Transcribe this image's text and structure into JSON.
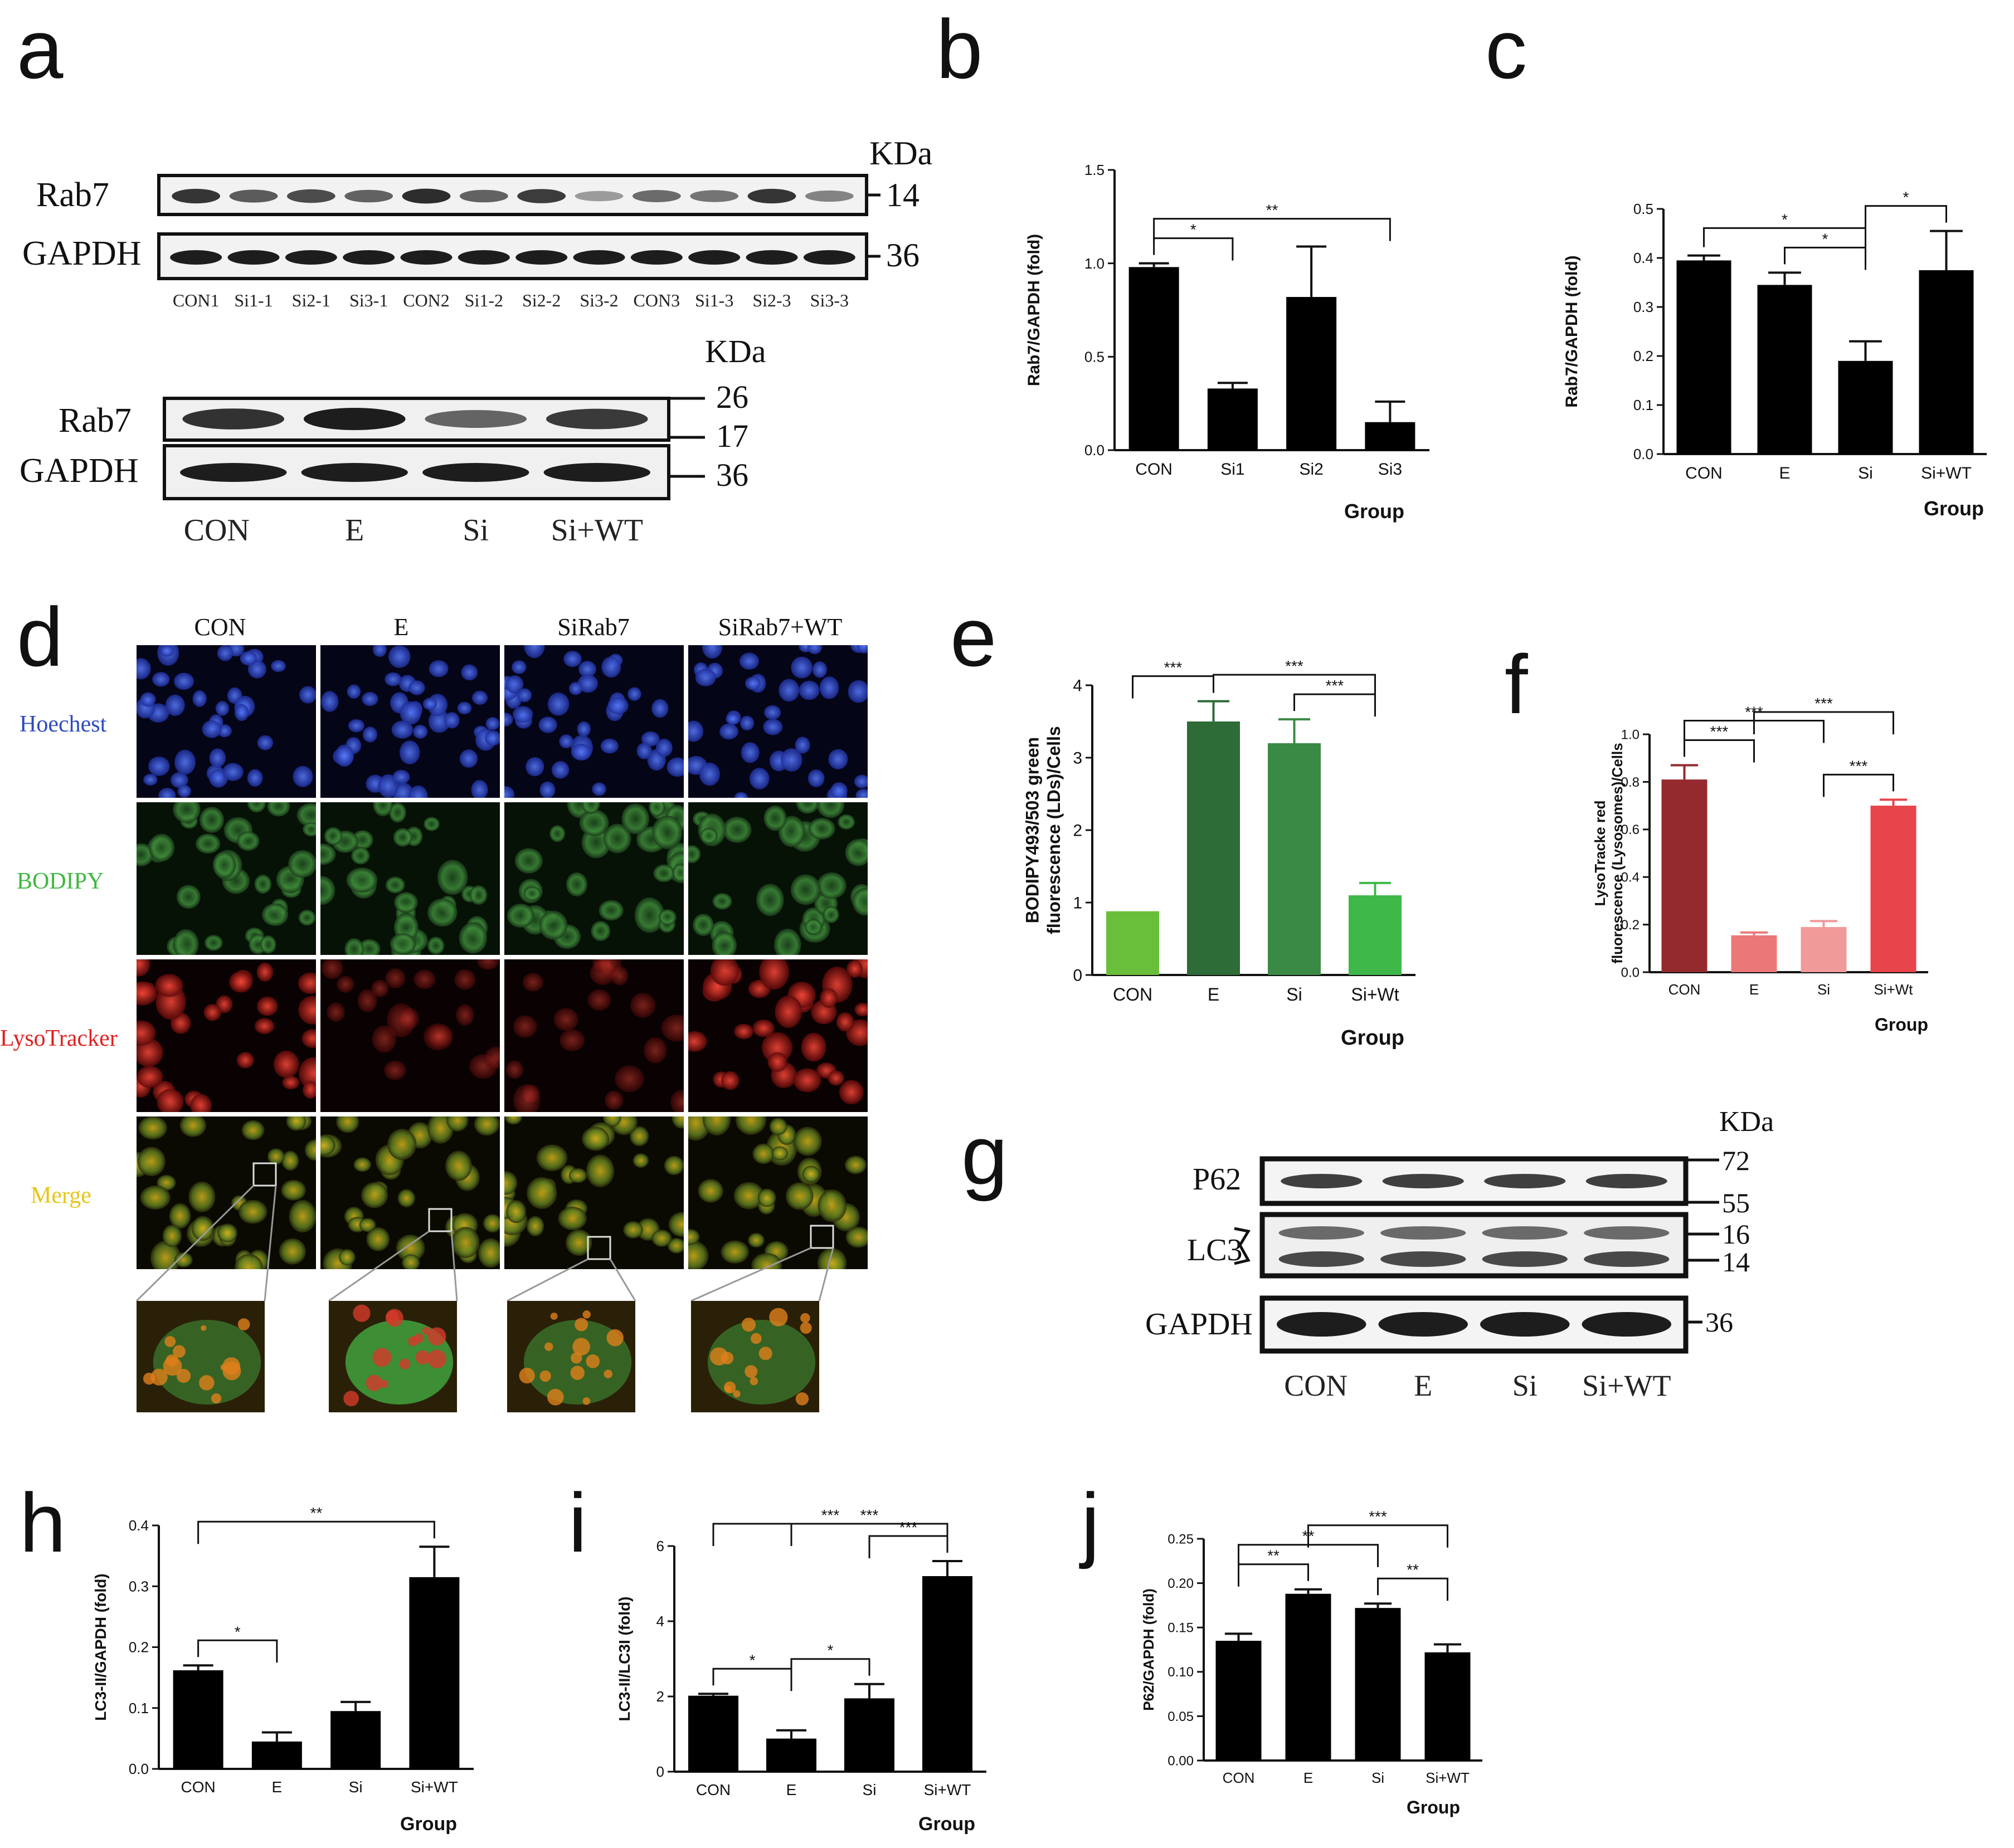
{
  "panel_letters": [
    "a",
    "b",
    "c",
    "d",
    "e",
    "f",
    "g",
    "h",
    "i",
    "j"
  ],
  "blot_a1": {
    "proteins": [
      "Rab7",
      "GAPDH"
    ],
    "kda_label": "KDa",
    "markers": [
      "14",
      "36"
    ],
    "lanes": [
      "CON1",
      "Si1-1",
      "Si2-1",
      "Si3-1",
      "CON2",
      "Si1-2",
      "Si2-2",
      "Si3-2",
      "CON3",
      "Si1-3",
      "Si2-3",
      "Si3-3"
    ],
    "rab7_intensity": [
      0.85,
      0.6,
      0.7,
      0.55,
      0.9,
      0.55,
      0.8,
      0.2,
      0.5,
      0.45,
      0.85,
      0.35
    ]
  },
  "blot_a2": {
    "proteins": [
      "Rab7",
      "GAPDH"
    ],
    "kda_label": "KDa",
    "markers": [
      "26",
      "17",
      "36"
    ],
    "lanes": [
      "CON",
      "E",
      "Si",
      "Si+WT"
    ],
    "rab7_intensity": [
      0.85,
      1.0,
      0.5,
      0.8
    ]
  },
  "micro_d": {
    "columns": [
      "CON",
      "E",
      "SiRab7",
      "SiRab7+WT"
    ],
    "rows": [
      "Hoechest",
      "BODIPY",
      "LysoTracker",
      "Merge"
    ],
    "row_colors": [
      "#2e4bbf",
      "#3fb83f",
      "#e02020",
      "#e6c619"
    ]
  },
  "blot_g": {
    "proteins": [
      "P62",
      "LC3",
      "GAPDH"
    ],
    "kda_label": "KDa",
    "markers": [
      "72",
      "55",
      "16",
      "14",
      "36"
    ],
    "lanes": [
      "CON",
      "E",
      "Si",
      "Si+WT"
    ]
  },
  "chart_data": [
    {
      "panel": "b",
      "type": "bar",
      "categories": [
        "CON",
        "Si1",
        "Si2",
        "Si3"
      ],
      "values": [
        0.98,
        0.33,
        0.82,
        0.15
      ],
      "errors": [
        0.02,
        0.03,
        0.27,
        0.11
      ],
      "ylabel": "Rab7/GAPDH (fold)",
      "xlabel": "Group",
      "ylim": [
        0,
        1.5
      ],
      "yticks": [
        "0.0",
        "0.5",
        "1.0",
        "1.5"
      ],
      "colors": [
        "#000000",
        "#000000",
        "#000000",
        "#000000"
      ],
      "significance": [
        {
          "from": 0,
          "to": 1,
          "label": "*"
        },
        {
          "from": 0,
          "to": 3,
          "label": "**"
        }
      ]
    },
    {
      "panel": "c",
      "type": "bar",
      "categories": [
        "CON",
        "E",
        "Si",
        "Si+WT"
      ],
      "values": [
        0.395,
        0.345,
        0.19,
        0.375
      ],
      "errors": [
        0.01,
        0.025,
        0.04,
        0.08
      ],
      "ylabel": "Rab7/GAPDH (fold)",
      "xlabel": "Group",
      "ylim": [
        0,
        0.5
      ],
      "yticks": [
        "0.0",
        "0.1",
        "0.2",
        "0.3",
        "0.4",
        "0.5"
      ],
      "colors": [
        "#000000",
        "#000000",
        "#000000",
        "#000000"
      ],
      "significance": [
        {
          "from": 0,
          "to": 2,
          "label": "*"
        },
        {
          "from": 1,
          "to": 2,
          "label": "*"
        },
        {
          "from": 2,
          "to": 3,
          "label": "*"
        }
      ]
    },
    {
      "panel": "e",
      "type": "bar",
      "categories": [
        "CON",
        "E",
        "Si",
        "Si+Wt"
      ],
      "values": [
        0.88,
        3.5,
        3.2,
        1.1
      ],
      "errors": [
        0.0,
        0.28,
        0.33,
        0.17
      ],
      "ylabel": "BODIPY493/503 green fluorescence (LDs)/Cells",
      "xlabel": "Group",
      "ylim": [
        0,
        4
      ],
      "yticks": [
        "0",
        "1",
        "2",
        "3",
        "4"
      ],
      "colors": [
        "#6abf3a",
        "#2d6b37",
        "#3a8a45",
        "#3fb84a"
      ],
      "significance": [
        {
          "from": 0,
          "to": 1,
          "label": "***"
        },
        {
          "from": 1,
          "to": 3,
          "label": "***"
        },
        {
          "from": 2,
          "to": 3,
          "label": "***"
        }
      ]
    },
    {
      "panel": "f",
      "type": "bar",
      "categories": [
        "CON",
        "E",
        "Si",
        "Si+Wt"
      ],
      "values": [
        0.81,
        0.155,
        0.19,
        0.7
      ],
      "errors": [
        0.06,
        0.012,
        0.025,
        0.025
      ],
      "ylabel": "LysoTracke red fluorescence (Lysosomes)/Cells",
      "xlabel": "Group",
      "ylim": [
        0,
        1.0
      ],
      "yticks": [
        "0.0",
        "0.2",
        "0.4",
        "0.6",
        "0.8",
        "1.0"
      ],
      "colors": [
        "#952a2e",
        "#ea7878",
        "#f19a9a",
        "#e8444b"
      ],
      "significance": [
        {
          "from": 0,
          "to": 1,
          "label": "***"
        },
        {
          "from": 0,
          "to": 2,
          "label": "***"
        },
        {
          "from": 1,
          "to": 3,
          "label": "***"
        },
        {
          "from": 2,
          "to": 3,
          "label": "***"
        }
      ]
    },
    {
      "panel": "h",
      "type": "bar",
      "categories": [
        "CON",
        "E",
        "Si",
        "Si+WT"
      ],
      "values": [
        0.162,
        0.045,
        0.095,
        0.315
      ],
      "errors": [
        0.008,
        0.015,
        0.015,
        0.05
      ],
      "ylabel": "LC3-II/GAPDH (fold)",
      "xlabel": "Group",
      "ylim": [
        0,
        0.4
      ],
      "yticks": [
        "0.0",
        "0.1",
        "0.2",
        "0.3",
        "0.4"
      ],
      "colors": [
        "#000000",
        "#000000",
        "#000000",
        "#000000"
      ],
      "significance": [
        {
          "from": 0,
          "to": 1,
          "label": "*"
        },
        {
          "from": 0,
          "to": 3,
          "label": "**"
        }
      ]
    },
    {
      "panel": "i",
      "type": "bar",
      "categories": [
        "CON",
        "E",
        "Si",
        "Si+WT"
      ],
      "values": [
        2.02,
        0.88,
        1.95,
        5.2
      ],
      "errors": [
        0.05,
        0.22,
        0.38,
        0.4
      ],
      "ylabel": "LC3-II/LC3I (fold)",
      "xlabel": "Group",
      "ylim": [
        0,
        6
      ],
      "yticks": [
        "0",
        "2",
        "4",
        "6"
      ],
      "colors": [
        "#000000",
        "#000000",
        "#000000",
        "#000000"
      ],
      "significance": [
        {
          "from": 0,
          "to": 1,
          "label": "*"
        },
        {
          "from": 1,
          "to": 2,
          "label": "*"
        },
        {
          "from": 0,
          "to": 3,
          "label": "***"
        },
        {
          "from": 1,
          "to": 3,
          "label": "***"
        },
        {
          "from": 2,
          "to": 3,
          "label": "***"
        }
      ]
    },
    {
      "panel": "j",
      "type": "bar",
      "categories": [
        "CON",
        "E",
        "Si",
        "Si+WT"
      ],
      "values": [
        0.135,
        0.188,
        0.172,
        0.122
      ],
      "errors": [
        0.008,
        0.005,
        0.005,
        0.009
      ],
      "ylabel": "P62/GAPDH (fold)",
      "xlabel": "Group",
      "ylim": [
        0,
        0.25
      ],
      "yticks": [
        "0.00",
        "0.05",
        "0.10",
        "0.15",
        "0.20",
        "0.25"
      ],
      "colors": [
        "#000000",
        "#000000",
        "#000000",
        "#000000"
      ],
      "significance": [
        {
          "from": 0,
          "to": 1,
          "label": "**"
        },
        {
          "from": 0,
          "to": 2,
          "label": "**"
        },
        {
          "from": 1,
          "to": 3,
          "label": "***"
        },
        {
          "from": 2,
          "to": 3,
          "label": "**"
        }
      ]
    }
  ]
}
